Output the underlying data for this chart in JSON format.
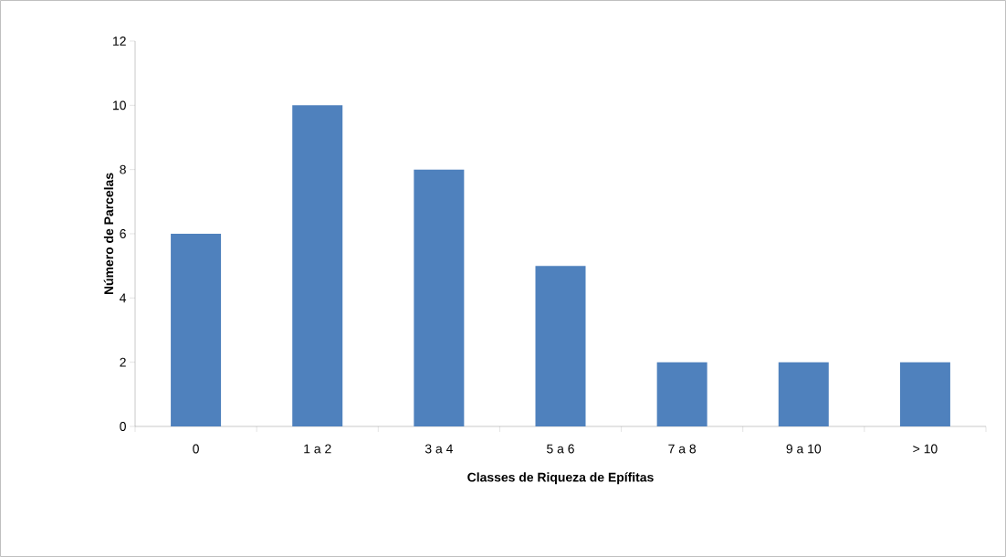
{
  "chart_data": {
    "type": "bar",
    "categories": [
      "0",
      "1 a 2",
      "3 a 4",
      "5 a 6",
      "7 a 8",
      "9 a 10",
      "> 10"
    ],
    "values": [
      6,
      10,
      8,
      5,
      2,
      2,
      2
    ],
    "color": "#4f81bd",
    "ylim": [
      0,
      12
    ],
    "yticks": [
      0,
      2,
      4,
      6,
      8,
      10,
      12
    ],
    "xlabel": "Classes de Riqueza de Epífitas",
    "ylabel": "Número de Parcelas"
  }
}
